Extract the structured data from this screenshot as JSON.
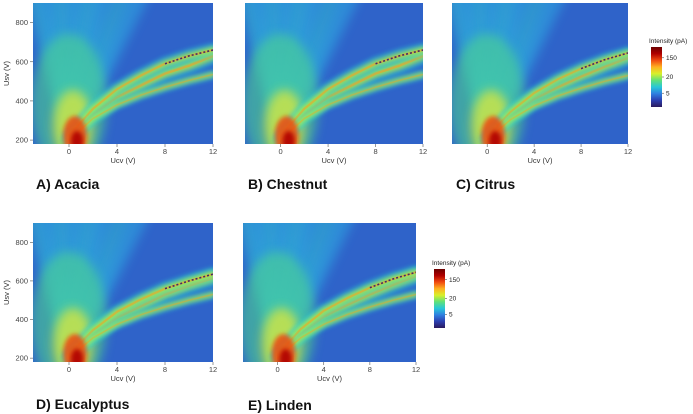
{
  "colors": {
    "background": "#2f63c9",
    "colormap": [
      "#2b1a5e",
      "#2c3fb0",
      "#2f7fe0",
      "#27c7d8",
      "#5fe07a",
      "#d8f02a",
      "#ffb020",
      "#f04a10",
      "#b00000",
      "#6a0000"
    ]
  },
  "chart_data": [
    {
      "type": "heatmap",
      "label": "A) Acacia",
      "xlabel": "Ucv (V)",
      "ylabel": "Usv (V)",
      "xticks": [
        0,
        4,
        8,
        12
      ],
      "yticks": [
        200,
        400,
        600,
        800
      ],
      "xlim": [
        -3,
        12
      ],
      "ylim": [
        180,
        900
      ],
      "legend": false,
      "ridges": [
        {
          "name": "main",
          "x": [
            0,
            2,
            4,
            6,
            8,
            10,
            12
          ],
          "y": [
            200,
            330,
            420,
            480,
            540,
            580,
            630
          ],
          "intensity": 1.0
        },
        {
          "name": "upper",
          "x": [
            0,
            2,
            4,
            6,
            8,
            10,
            12
          ],
          "y": [
            220,
            360,
            460,
            530,
            590,
            630,
            660
          ],
          "intensity": 0.85
        },
        {
          "name": "lower",
          "x": [
            0,
            2,
            4,
            6,
            8,
            10,
            12
          ],
          "y": [
            200,
            310,
            380,
            430,
            470,
            505,
            535
          ],
          "intensity": 0.6
        }
      ]
    },
    {
      "type": "heatmap",
      "label": "B) Chestnut",
      "xlabel": "Ucv (V)",
      "ylabel": "",
      "xticks": [
        0,
        4,
        8,
        12
      ],
      "yticks": [],
      "xlim": [
        -3,
        12
      ],
      "ylim": [
        180,
        900
      ],
      "legend": false,
      "ridges": [
        {
          "name": "main",
          "x": [
            0,
            2,
            4,
            6,
            8,
            10,
            12
          ],
          "y": [
            200,
            330,
            420,
            480,
            540,
            580,
            630
          ],
          "intensity": 1.0
        },
        {
          "name": "upper",
          "x": [
            0,
            2,
            4,
            6,
            8,
            10,
            12
          ],
          "y": [
            220,
            360,
            460,
            530,
            590,
            630,
            660
          ],
          "intensity": 0.85
        },
        {
          "name": "lower",
          "x": [
            0,
            2,
            4,
            6,
            8,
            10,
            12
          ],
          "y": [
            200,
            310,
            380,
            430,
            470,
            505,
            535
          ],
          "intensity": 0.6
        }
      ]
    },
    {
      "type": "heatmap",
      "label": "C) Citrus",
      "xlabel": "Ucv (V)",
      "ylabel": "",
      "xticks": [
        0,
        4,
        8,
        12
      ],
      "yticks": [],
      "xlim": [
        -3,
        12
      ],
      "ylim": [
        180,
        900
      ],
      "legend": true,
      "legend_title": "Intensity (pA)",
      "legend_ticks": [
        "150",
        "20",
        "5"
      ],
      "ridges": [
        {
          "name": "main",
          "x": [
            0,
            2,
            4,
            6,
            8,
            10,
            12
          ],
          "y": [
            200,
            320,
            410,
            470,
            525,
            575,
            620
          ],
          "intensity": 1.0
        },
        {
          "name": "upper",
          "x": [
            0,
            2,
            4,
            6,
            8,
            10,
            12
          ],
          "y": [
            215,
            345,
            440,
            510,
            565,
            610,
            645
          ],
          "intensity": 0.8
        },
        {
          "name": "lower",
          "x": [
            0,
            2,
            4,
            6,
            8,
            10,
            12
          ],
          "y": [
            200,
            305,
            375,
            425,
            465,
            500,
            530
          ],
          "intensity": 0.6
        }
      ]
    },
    {
      "type": "heatmap",
      "label": "D) Eucalyptus",
      "xlabel": "Ucv (V)",
      "ylabel": "Usv (V)",
      "xticks": [
        0,
        4,
        8,
        12
      ],
      "yticks": [
        200,
        400,
        600,
        800
      ],
      "xlim": [
        -3,
        12
      ],
      "ylim": [
        180,
        900
      ],
      "legend": false,
      "ridges": [
        {
          "name": "main",
          "x": [
            0,
            2,
            4,
            6,
            8,
            10,
            12
          ],
          "y": [
            200,
            320,
            410,
            470,
            530,
            575,
            615
          ],
          "intensity": 1.0
        },
        {
          "name": "upper",
          "x": [
            0,
            2,
            4,
            6,
            8,
            10,
            12
          ],
          "y": [
            215,
            345,
            440,
            505,
            560,
            600,
            635
          ],
          "intensity": 0.85
        },
        {
          "name": "lower",
          "x": [
            0,
            2,
            4,
            6,
            8,
            10,
            12
          ],
          "y": [
            200,
            305,
            375,
            425,
            465,
            500,
            530
          ],
          "intensity": 0.6
        }
      ]
    },
    {
      "type": "heatmap",
      "label": "E) Linden",
      "xlabel": "Ucv (V)",
      "ylabel": "",
      "xticks": [
        0,
        4,
        8,
        12
      ],
      "yticks": [],
      "xlim": [
        -3,
        12
      ],
      "ylim": [
        180,
        900
      ],
      "legend": true,
      "legend_title": "Intensity (pA)",
      "legend_ticks": [
        "150",
        "20",
        "5"
      ],
      "ridges": [
        {
          "name": "main",
          "x": [
            0,
            2,
            4,
            6,
            8,
            10,
            12
          ],
          "y": [
            200,
            325,
            415,
            475,
            530,
            580,
            625
          ],
          "intensity": 1.0
        },
        {
          "name": "upper",
          "x": [
            0,
            2,
            4,
            6,
            8,
            10,
            12
          ],
          "y": [
            215,
            350,
            445,
            510,
            565,
            610,
            645
          ],
          "intensity": 0.85
        },
        {
          "name": "lower",
          "x": [
            0,
            2,
            4,
            6,
            8,
            10,
            12
          ],
          "y": [
            200,
            305,
            375,
            425,
            465,
            500,
            530
          ],
          "intensity": 0.6
        }
      ]
    }
  ]
}
